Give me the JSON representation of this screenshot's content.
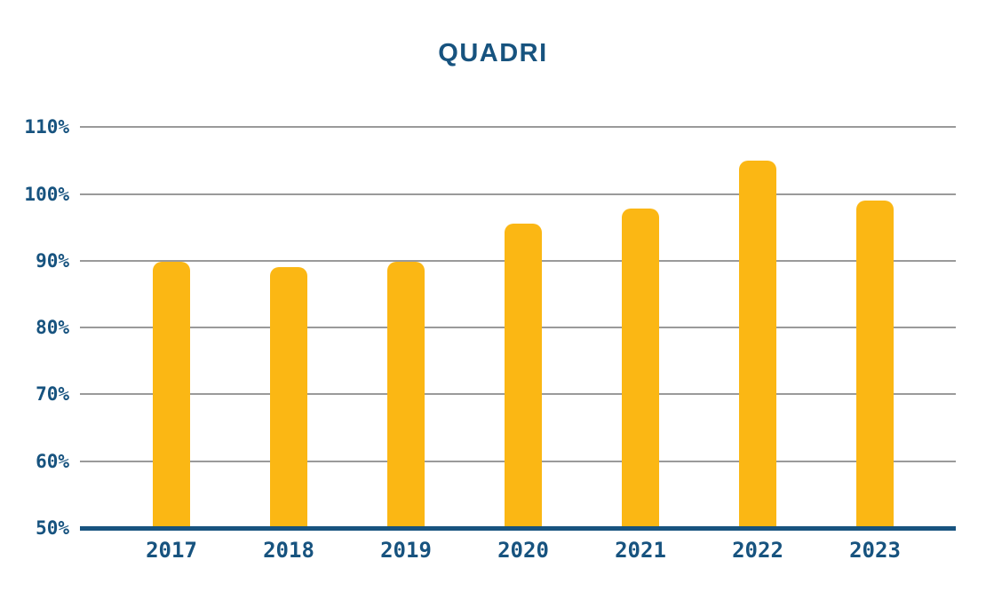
{
  "page": {
    "background_color": "#FFFFFF"
  },
  "chart": {
    "title": "QUADRI",
    "colors": {
      "bar": "#FBB714",
      "axis_text": "#17537F",
      "title_text": "#17537F",
      "gridline": "#9A9A9A",
      "baseline": "#17537F"
    }
  },
  "chart_data": {
    "type": "bar",
    "title": "QUADRI",
    "categories": [
      "2017",
      "2018",
      "2019",
      "2020",
      "2021",
      "2022",
      "2023"
    ],
    "values": [
      89.8,
      89.0,
      89.8,
      95.6,
      97.8,
      105.0,
      99.0
    ],
    "unit": "%",
    "xlabel": "",
    "ylabel": "",
    "ylim": [
      50,
      110
    ],
    "y_ticks": [
      50,
      60,
      70,
      80,
      90,
      100,
      110
    ],
    "y_tick_labels": [
      "50%",
      "60%",
      "70%",
      "80%",
      "90%",
      "100%",
      "110%"
    ],
    "grid": true,
    "legend": false,
    "bar_data_labels": false
  }
}
